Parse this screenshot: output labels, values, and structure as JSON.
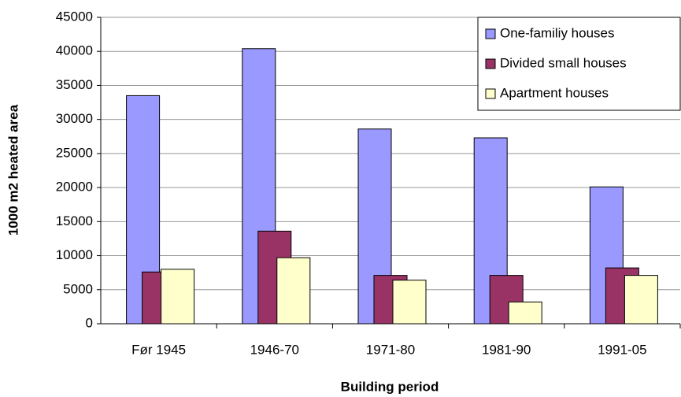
{
  "chart_data": {
    "type": "bar",
    "x_label": "Building period",
    "y_label": "1000 m2 heated area",
    "categories": [
      "Før 1945",
      "1946-70",
      "1971-80",
      "1981-90",
      "1991-05"
    ],
    "series": [
      {
        "name": "One-familiy houses",
        "color": "#9999ff",
        "values": [
          33500,
          40400,
          28600,
          27300,
          20100
        ]
      },
      {
        "name": "Divided small houses",
        "color": "#993366",
        "values": [
          7600,
          13600,
          7100,
          7100,
          8200
        ]
      },
      {
        "name": "Apartment houses",
        "color": "#ffffcc",
        "values": [
          8000,
          9700,
          6400,
          3200,
          7100
        ]
      }
    ],
    "ylim": [
      0,
      45000
    ],
    "yticks": [
      0,
      5000,
      10000,
      15000,
      20000,
      25000,
      30000,
      35000,
      40000,
      45000
    ],
    "grid": true,
    "legend": "top-right"
  }
}
